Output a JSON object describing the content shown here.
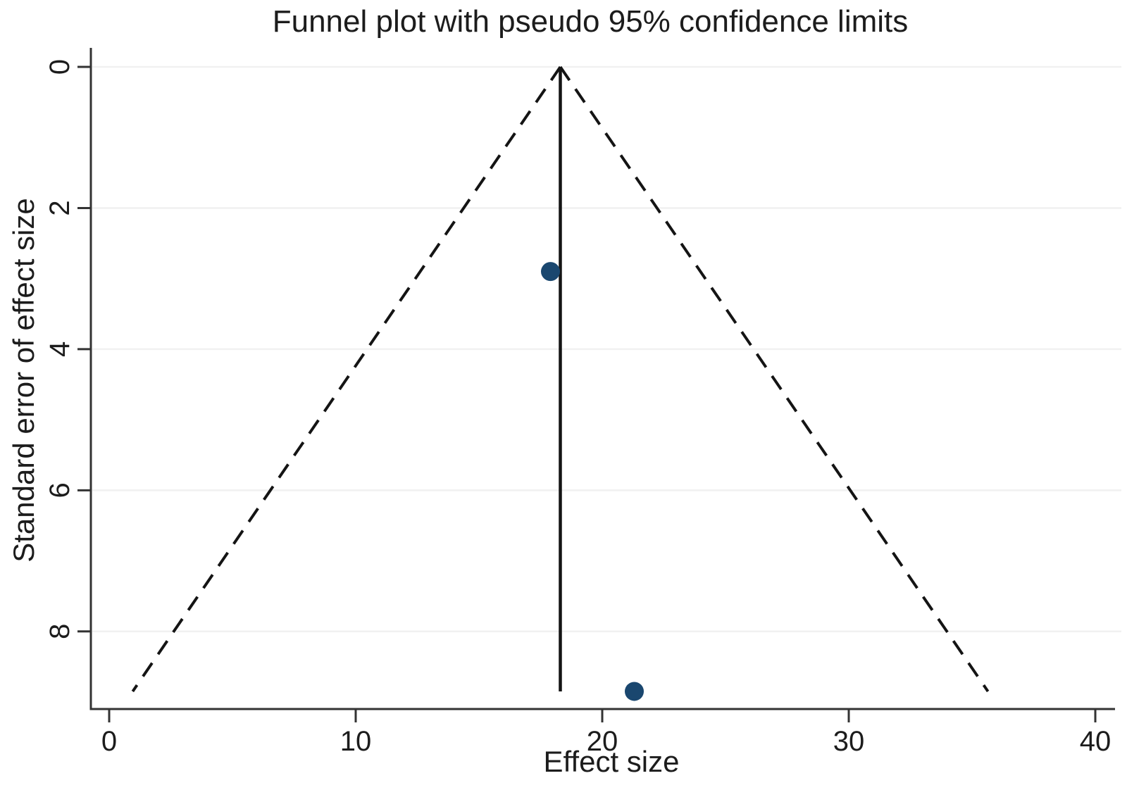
{
  "figure": {
    "title": "Funnel plot with pseudo 95% confidence limits"
  },
  "chart_data": {
    "type": "scatter",
    "subtype": "funnel-plot",
    "title": "Funnel plot with pseudo 95% confidence limits",
    "xlabel": "Effect size",
    "ylabel": "Standard error of effect size",
    "xlim": [
      0,
      40
    ],
    "ylim": [
      0,
      9.1
    ],
    "y_axis_reversed": true,
    "x_ticks": [
      0,
      10,
      20,
      30,
      40
    ],
    "y_ticks": [
      0,
      2,
      4,
      6,
      8
    ],
    "grid": "horizontal-only",
    "legend": "none",
    "points": [
      {
        "effect_size": 17.9,
        "standard_error": 2.9
      },
      {
        "effect_size": 21.3,
        "standard_error": 8.85
      }
    ],
    "pooled_effect": 18.3,
    "funnel": {
      "center": 18.3,
      "max_se": 8.85,
      "ci_multiplier": 1.96,
      "label": "pseudo 95% confidence limits",
      "line_style": "dashed"
    },
    "colors": {
      "marker": "#1a476f",
      "funnel_line": "#141414",
      "pooled_line": "#141414",
      "grid": "#f1f1f1",
      "axis": "#333333",
      "text": "#1c1c1c",
      "background": "#ffffff"
    }
  }
}
